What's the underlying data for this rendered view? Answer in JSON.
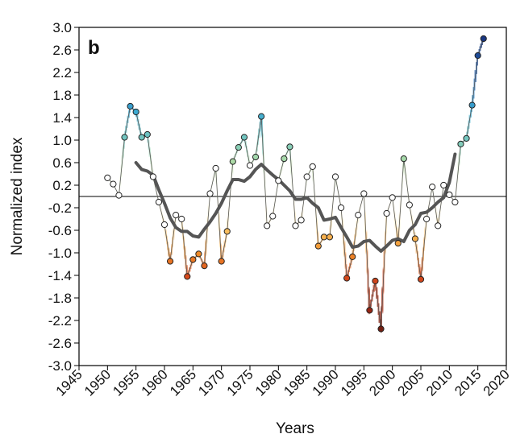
{
  "chart_data": {
    "type": "line",
    "panel_label": "b",
    "xlabel": "Years",
    "ylabel": "Normalized index",
    "xlim": [
      1945,
      2020
    ],
    "ylim": [
      -3.0,
      3.0
    ],
    "xticks": [
      1945,
      1950,
      1955,
      1960,
      1965,
      1970,
      1975,
      1980,
      1985,
      1990,
      1995,
      2000,
      2005,
      2010,
      2015,
      2020
    ],
    "yticks": [
      "3.0",
      "2.6",
      "2.2",
      "1.8",
      "1.4",
      "1.0",
      "0.6",
      "0.2",
      "-0.2",
      "-0.6",
      "-1.0",
      "-1.4",
      "-1.8",
      "-2.2",
      "-2.6",
      "-3.0"
    ],
    "zero_line": 0,
    "grid": false,
    "series": [
      {
        "style": "annual-points-colored",
        "x": [
          1950,
          1951,
          1952,
          1953,
          1954,
          1955,
          1956,
          1957,
          1958,
          1959,
          1960,
          1961,
          1962,
          1963,
          1964,
          1965,
          1966,
          1967,
          1968,
          1969,
          1970,
          1971,
          1972,
          1973,
          1974,
          1975,
          1976,
          1977,
          1978,
          1979,
          1980,
          1981,
          1982,
          1983,
          1984,
          1985,
          1986,
          1987,
          1988,
          1989,
          1990,
          1991,
          1992,
          1993,
          1994,
          1995,
          1996,
          1997,
          1998,
          1999,
          2000,
          2001,
          2002,
          2003,
          2004,
          2005,
          2006,
          2007,
          2008,
          2009,
          2010,
          2011,
          2012,
          2013,
          2014,
          2015,
          2016
        ],
        "y": [
          0.33,
          0.22,
          0.02,
          1.05,
          1.6,
          1.5,
          1.05,
          1.1,
          0.35,
          -0.1,
          -0.5,
          -1.15,
          -0.33,
          -0.4,
          -1.42,
          -1.12,
          -1.02,
          -1.23,
          0.05,
          0.5,
          -1.15,
          -0.62,
          0.62,
          0.87,
          1.05,
          0.55,
          0.7,
          1.42,
          -0.52,
          -0.35,
          0.28,
          0.67,
          0.88,
          -0.52,
          -0.42,
          0.35,
          0.53,
          -0.88,
          -0.72,
          -0.72,
          0.35,
          -0.2,
          -1.45,
          -1.07,
          -0.33,
          0.05,
          -2.02,
          -1.5,
          -2.35,
          -0.3,
          -0.02,
          -0.83,
          0.67,
          -0.15,
          -0.75,
          -1.47,
          -0.4,
          0.17,
          -0.52,
          0.2,
          0.03,
          -0.1,
          0.93,
          1.03,
          1.62,
          2.5,
          2.8
        ]
      },
      {
        "style": "smoothed-line",
        "color": "#555555",
        "x": [
          1955,
          1956,
          1957,
          1958,
          1959,
          1960,
          1961,
          1962,
          1963,
          1964,
          1965,
          1966,
          1967,
          1968,
          1969,
          1970,
          1971,
          1972,
          1973,
          1974,
          1975,
          1976,
          1977,
          1978,
          1979,
          1980,
          1981,
          1982,
          1983,
          1984,
          1985,
          1986,
          1987,
          1988,
          1989,
          1990,
          1991,
          1992,
          1993,
          1994,
          1995,
          1996,
          1997,
          1998,
          1999,
          2000,
          2001,
          2002,
          2003,
          2004,
          2005,
          2006,
          2007,
          2008,
          2009,
          2010,
          2011
        ],
        "y": [
          0.6,
          0.48,
          0.45,
          0.38,
          0.12,
          -0.12,
          -0.38,
          -0.55,
          -0.62,
          -0.62,
          -0.7,
          -0.72,
          -0.58,
          -0.45,
          -0.3,
          -0.12,
          0.1,
          0.3,
          0.3,
          0.27,
          0.35,
          0.48,
          0.57,
          0.47,
          0.38,
          0.3,
          0.2,
          0.1,
          -0.05,
          -0.05,
          -0.02,
          -0.12,
          -0.2,
          -0.42,
          -0.4,
          -0.37,
          -0.55,
          -0.72,
          -0.9,
          -0.88,
          -0.8,
          -0.78,
          -0.88,
          -0.97,
          -0.88,
          -0.78,
          -0.75,
          -0.8,
          -0.6,
          -0.5,
          -0.3,
          -0.28,
          -0.2,
          -0.1,
          -0.02,
          0.25,
          0.75
        ]
      }
    ]
  }
}
